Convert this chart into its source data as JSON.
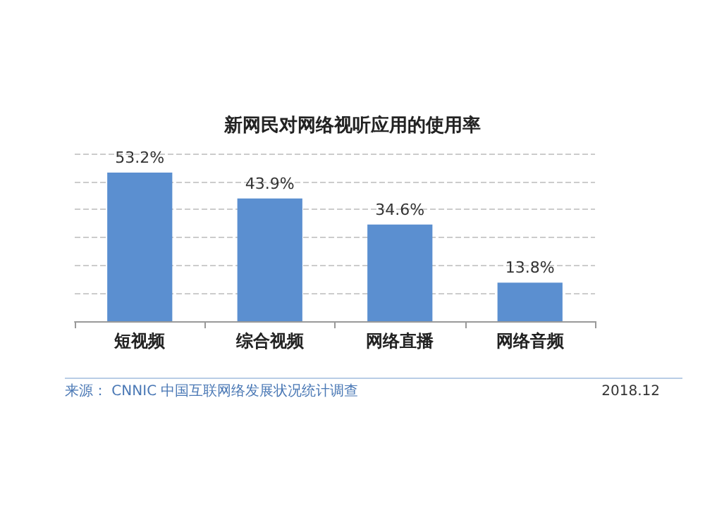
{
  "chart_data": {
    "type": "bar",
    "title": "新网民对网络视听应用的使用率",
    "categories": [
      "短视频",
      "综合视频",
      "网络直播",
      "网络音频"
    ],
    "values": [
      53.2,
      43.9,
      34.6,
      13.8
    ],
    "value_labels": [
      "53.2%",
      "43.9%",
      "34.6%",
      "13.8%"
    ],
    "color": "#5b8fd0",
    "ylim": [
      0,
      60
    ],
    "yticks": [
      0,
      10,
      20,
      30,
      40,
      50,
      60
    ],
    "tick_labels": "x",
    "grid": "y",
    "annotations": [
      "来源： CNNIC 中国互联网络发展状况统计调查",
      "2018.12"
    ]
  }
}
